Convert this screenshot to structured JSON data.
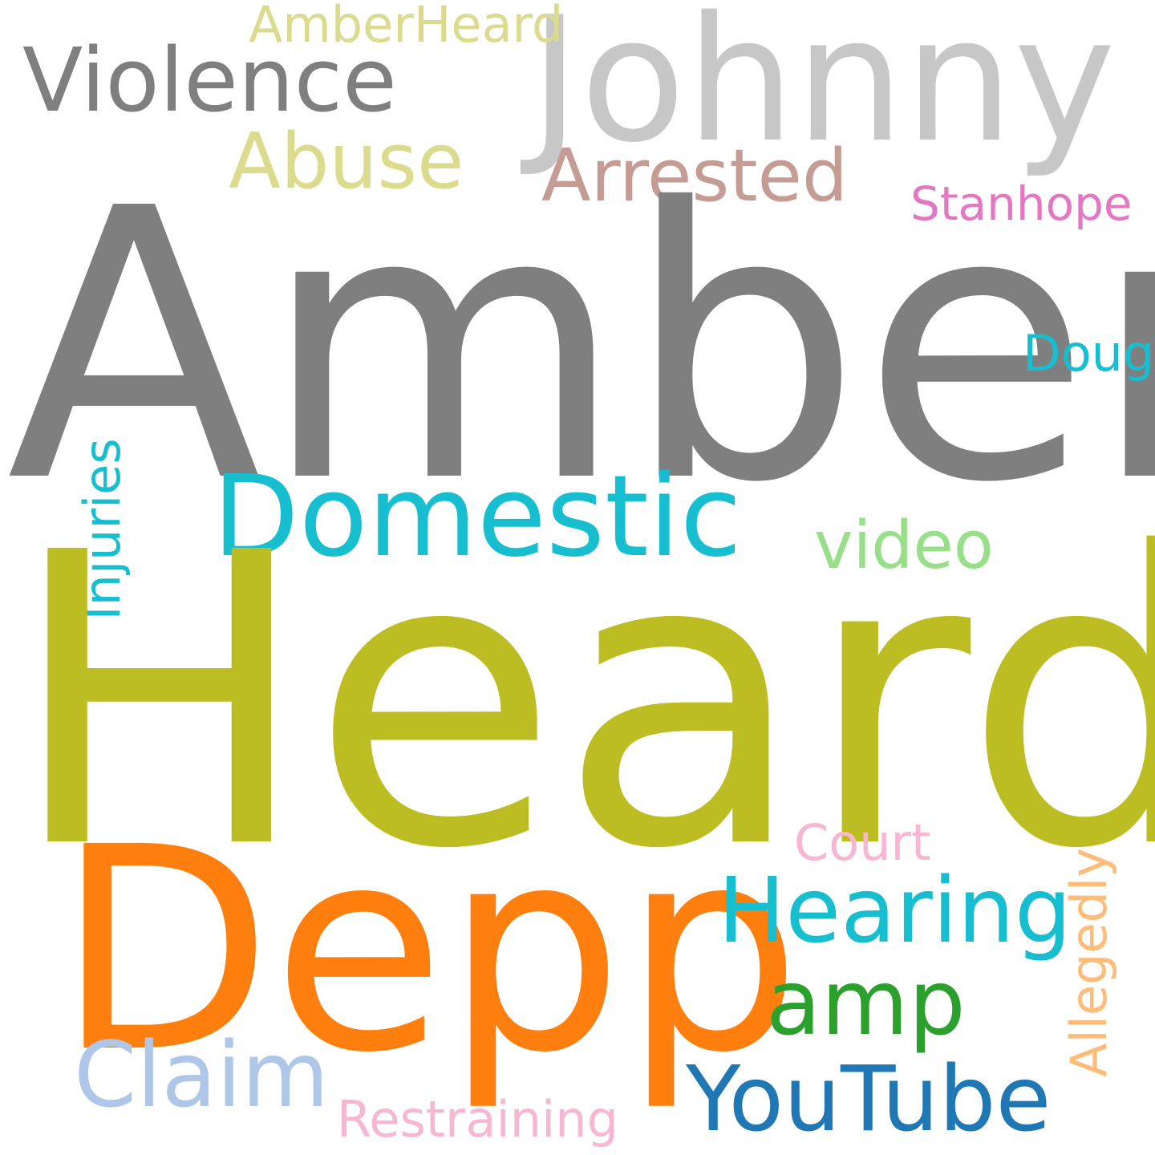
{
  "words": {
    "amber": "Amber",
    "heard": "Heard",
    "depp": "Depp",
    "johnny": "Johnny",
    "violence": "Violence",
    "amberheard": "AmberHeard",
    "abuse": "Abuse",
    "arrested": "Arrested",
    "stanhope": "Stanhope",
    "doug": "Doug",
    "domestic": "Domestic",
    "video": "video",
    "injuries": "Injuries",
    "hearing": "Hearing",
    "amp": "amp",
    "court": "Court",
    "allegedly": "Allegedly",
    "claim": "Claim",
    "youtube": "YouTube",
    "restraining": "Restraining"
  },
  "colors": {
    "gray": "#7f7f7f",
    "light_gray": "#c7c7c7",
    "olive": "#bcbd22",
    "khaki": "#dbdb8d",
    "orange": "#ff7f0e",
    "light_orange": "#ffbb78",
    "cyan": "#17becf",
    "green": "#2ca02c",
    "light_green": "#98df8a",
    "blue": "#1f77b4",
    "light_blue": "#aec7e8",
    "pink": "#e377c2",
    "light_pink": "#f7b6d2",
    "rose_brown": "#c49c94"
  }
}
